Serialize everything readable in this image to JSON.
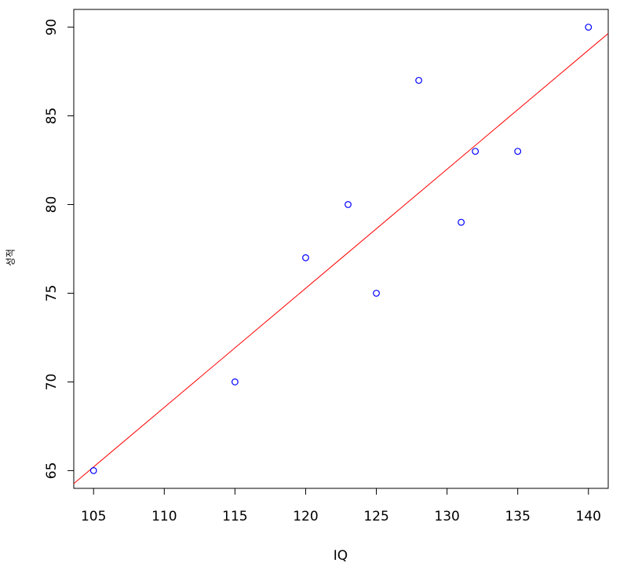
{
  "chart_data": {
    "type": "scatter",
    "x_label": "IQ",
    "y_label": "성적",
    "x": [
      105,
      115,
      120,
      123,
      125,
      128,
      131,
      132,
      135,
      140
    ],
    "values": [
      65,
      70,
      77,
      80,
      75,
      87,
      79,
      83,
      83,
      90
    ],
    "color": "#0000ff",
    "xlim": [
      103.6,
      141.4
    ],
    "ylim": [
      64,
      91
    ],
    "xticks": [
      105,
      110,
      115,
      120,
      125,
      130,
      135,
      140
    ],
    "yticks": [
      65,
      70,
      75,
      80,
      85,
      90
    ],
    "fit_line": {
      "intercept": -5.29,
      "slope": 0.6714,
      "color": "#ff0000"
    }
  }
}
